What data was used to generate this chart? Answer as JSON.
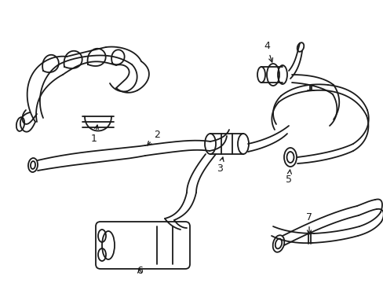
{
  "background_color": "#ffffff",
  "line_color": "#1a1a1a",
  "line_width": 1.3,
  "label_fontsize": 9,
  "fig_width": 4.89,
  "fig_height": 3.6,
  "dpi": 100
}
